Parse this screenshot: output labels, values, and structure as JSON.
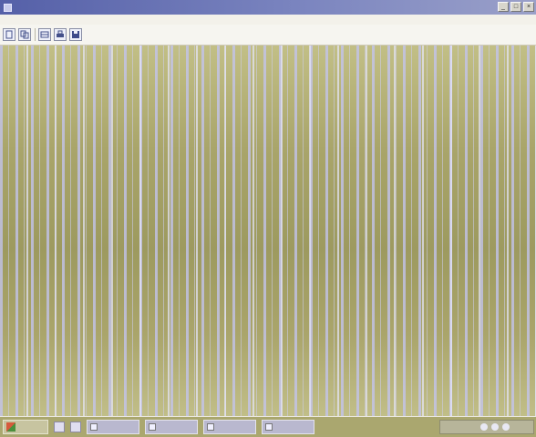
{
  "window": {
    "title": "",
    "buttons": [
      "minimize-icon",
      "maximize-icon",
      "close-icon"
    ]
  },
  "menubar": {
    "items": [
      {
        "label": ""
      },
      {
        "label": ""
      }
    ]
  },
  "toolbar": {
    "tools": [
      "document-icon",
      "copy-icon",
      "table-icon",
      "print-icon",
      "save-icon"
    ]
  },
  "taskbar": {
    "start_label": "",
    "tasks": [
      {
        "label": ""
      },
      {
        "label": ""
      },
      {
        "label": ""
      },
      {
        "label": ""
      }
    ],
    "clock": ""
  },
  "colors": {
    "titlebar": "#5560a8",
    "canvas": "#a9a56a",
    "stripes": "#c3c4ee",
    "taskbar": "#aaa76f"
  }
}
